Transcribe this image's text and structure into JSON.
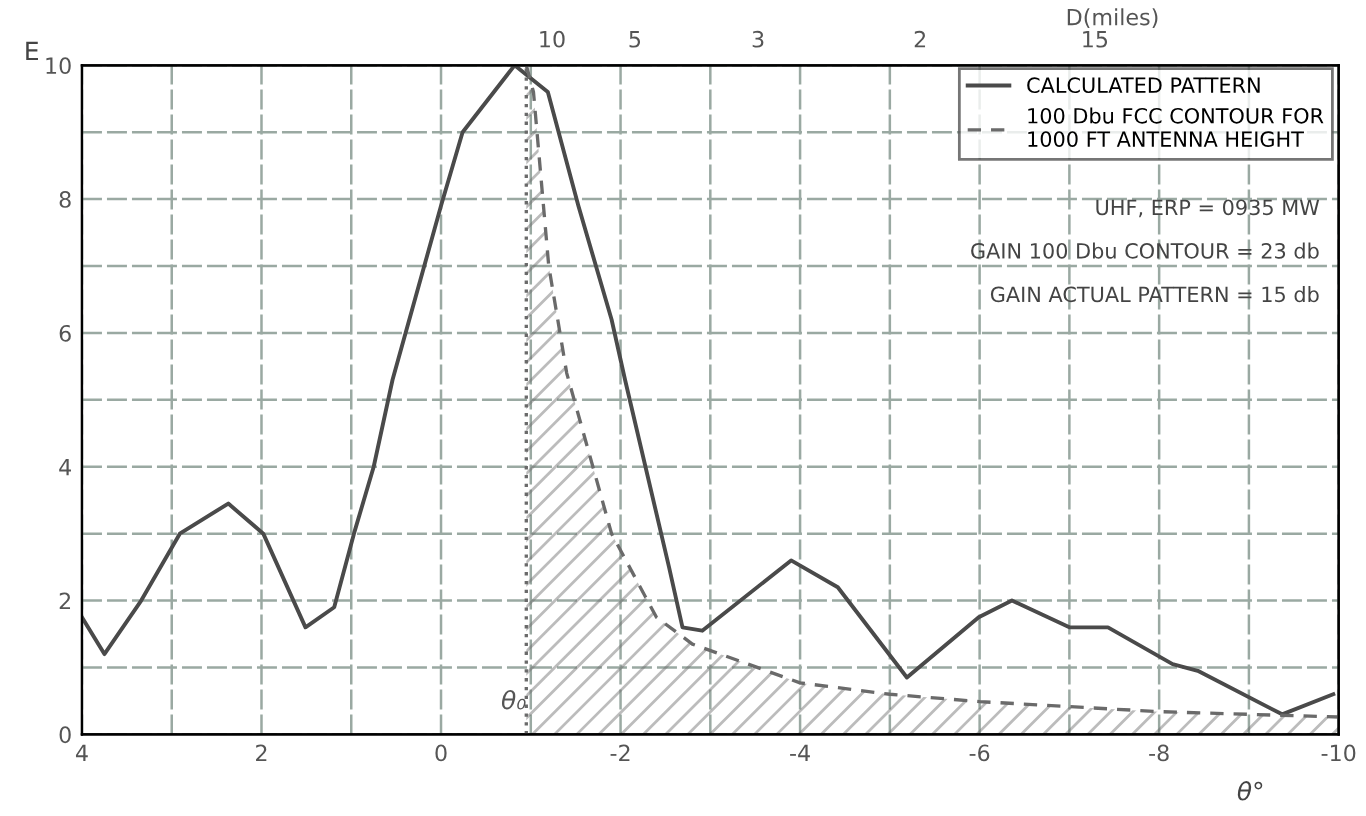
{
  "chart_data": {
    "type": "line",
    "ylabel": "E",
    "xlabel": "θ°",
    "x2label": "D(miles)",
    "xlim": [
      4,
      -10
    ],
    "ylim": [
      0,
      10
    ],
    "xticks": [
      4,
      {
        "value": 3,
        "label": null
      },
      2,
      {
        "value": 1,
        "label": null
      },
      0,
      {
        "value": -1,
        "label": null
      },
      -2,
      {
        "value": -3,
        "label": null
      },
      -4,
      {
        "value": -5,
        "label": null
      },
      -6,
      {
        "value": -7,
        "label": null
      },
      -8,
      {
        "value": -9,
        "label": null
      },
      -10
    ],
    "yticks": [
      0,
      {
        "value": 1,
        "label": null
      },
      2,
      {
        "value": 3,
        "label": null
      },
      4,
      {
        "value": 5,
        "label": null
      },
      6,
      {
        "value": 7,
        "label": null
      },
      8,
      {
        "value": 9,
        "label": null
      },
      10
    ],
    "grid": true,
    "legend": "top right",
    "marker": "none",
    "series": [
      {
        "name": "CALCULATED PATTERN",
        "color": "#4a4a4a",
        "line_style": "solid",
        "x": [
          4.0,
          3.75,
          3.34,
          2.91,
          2.37,
          1.98,
          1.51,
          1.19,
          0.97,
          0.75,
          0.54,
          0.0,
          -0.24,
          -0.82,
          -1.19,
          -1.53,
          -1.9,
          -2.05,
          -2.54,
          -2.69,
          -2.91,
          -3.9,
          -4.42,
          -5.19,
          -5.99,
          -6.36,
          -7.0,
          -7.43,
          -8.15,
          -8.43,
          -9.37,
          -9.94
        ],
        "values": [
          1.75,
          1.2,
          2.0,
          3.0,
          3.45,
          3.0,
          1.6,
          1.9,
          3.0,
          4.0,
          5.3,
          7.9,
          9.0,
          10.0,
          9.6,
          7.9,
          6.2,
          5.3,
          2.5,
          1.6,
          1.55,
          2.6,
          2.2,
          0.85,
          1.75,
          2.0,
          1.6,
          1.6,
          1.05,
          0.95,
          0.3,
          0.6
        ]
      },
      {
        "name": "100 Dbu FCC CONTOUR FOR\n1000 FT ANTENNA HEIGHT",
        "type": "area",
        "color": "#6a6a6a",
        "line_style": "dashed",
        "x": [
          -0.95,
          -1.03,
          -1.2,
          -1.4,
          -1.9,
          -2.4,
          -2.8,
          -4.0,
          -5.0,
          -6.0,
          -8.0,
          -10.0
        ],
        "values": [
          10.0,
          9.6,
          7.0,
          5.4,
          3.0,
          1.75,
          1.35,
          0.77,
          0.6,
          0.49,
          0.34,
          0.26
        ]
      }
    ],
    "ref_lines": [
      {
        "axis": "x",
        "value": -0.95,
        "label": "θ₀",
        "line_style": "dotted",
        "color": "#6a6a6a"
      }
    ],
    "annotations": [
      "UHF, ERP = 0935 MW",
      "GAIN 100 Dbu CONTOUR = 23 db",
      "GAIN ACTUAL PATTERN = 15 db",
      "10",
      "5",
      "3",
      "2",
      "15"
    ]
  }
}
